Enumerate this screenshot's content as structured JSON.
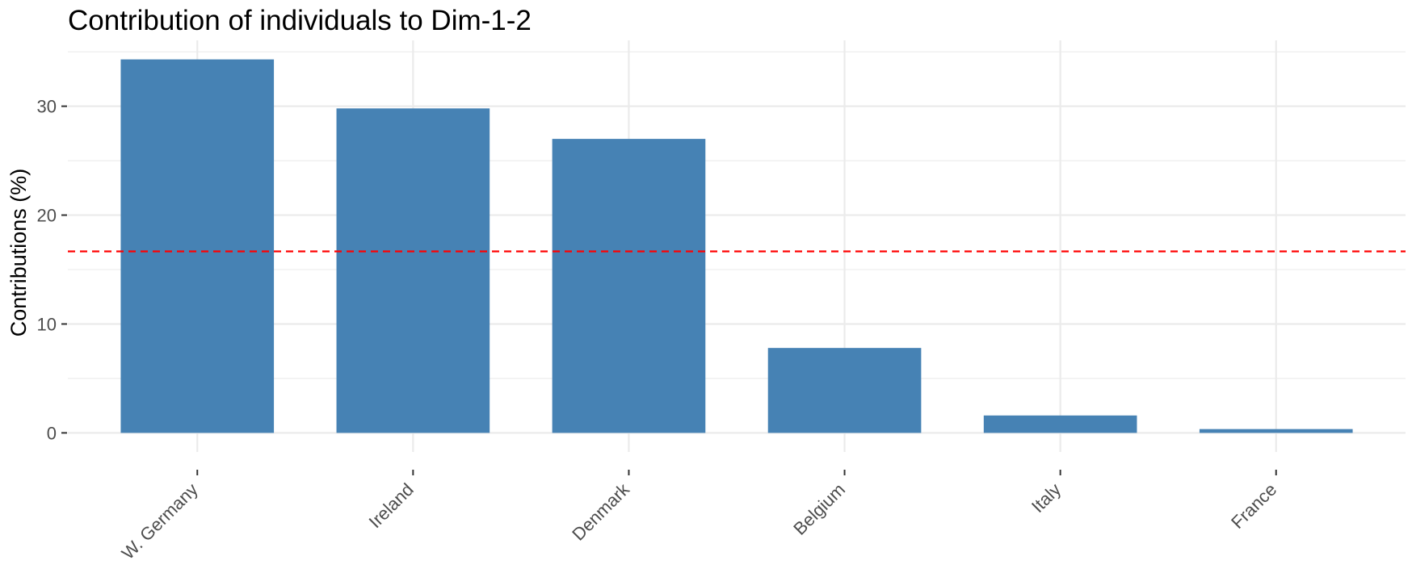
{
  "chart_data": {
    "type": "bar",
    "title": "Contribution of individuals to Dim-1-2",
    "xlabel": "",
    "ylabel": "Contributions (%)",
    "categories": [
      "W. Germany",
      "Ireland",
      "Denmark",
      "Belgium",
      "Italy",
      "France"
    ],
    "values": [
      34.3,
      29.8,
      27.0,
      7.8,
      1.6,
      0.35
    ],
    "ylim": [
      0,
      35
    ],
    "yticks": [
      0,
      10,
      20,
      30
    ],
    "reference_line": 16.67,
    "grid": true,
    "colors": {
      "bar": "#4682B4",
      "reference_line": "#FF0000",
      "grid": "#EBEBEB",
      "tick": "#333333"
    }
  }
}
